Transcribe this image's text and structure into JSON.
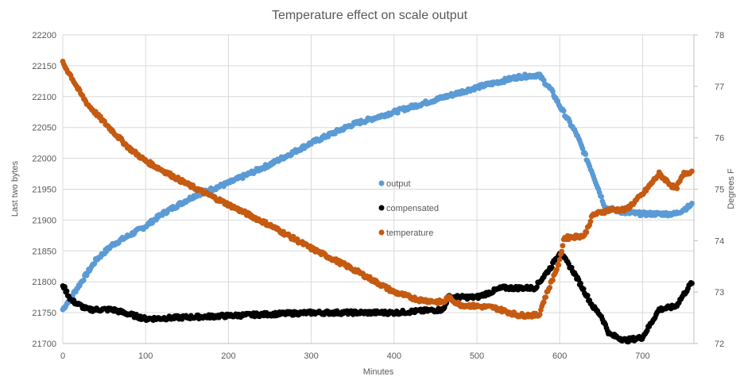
{
  "chart_data": {
    "type": "scatter",
    "title": "Temperature effect on scale output",
    "xlabel": "Minutes",
    "ylabel": "Last two bytes",
    "y2label": "Degrees F",
    "xlim": [
      0,
      762
    ],
    "ylim": [
      21700,
      22200
    ],
    "y2lim": [
      72,
      78
    ],
    "x_ticks": [
      "0",
      "100",
      "200",
      "300",
      "400",
      "500",
      "600",
      "700"
    ],
    "y_ticks": [
      "21700",
      "21750",
      "21800",
      "21850",
      "21900",
      "21950",
      "22000",
      "22050",
      "22100",
      "22150",
      "22200"
    ],
    "y2_ticks": [
      "72",
      "73",
      "74",
      "75",
      "76",
      "77",
      "78"
    ],
    "grid": true,
    "legend_position": "center",
    "series": [
      {
        "name": "output",
        "axis": "left",
        "color": "#5B9BD5",
        "points": [
          [
            0,
            21755
          ],
          [
            10,
            21775
          ],
          [
            20,
            21795
          ],
          [
            40,
            21835
          ],
          [
            60,
            21860
          ],
          [
            80,
            21875
          ],
          [
            100,
            21890
          ],
          [
            120,
            21910
          ],
          [
            140,
            21925
          ],
          [
            160,
            21940
          ],
          [
            200,
            21960
          ],
          [
            250,
            21990
          ],
          [
            300,
            22025
          ],
          [
            350,
            22055
          ],
          [
            400,
            22075
          ],
          [
            450,
            22095
          ],
          [
            500,
            22115
          ],
          [
            550,
            22132
          ],
          [
            575,
            22135
          ],
          [
            590,
            22110
          ],
          [
            600,
            22085
          ],
          [
            620,
            22040
          ],
          [
            640,
            21975
          ],
          [
            655,
            21920
          ],
          [
            680,
            21912
          ],
          [
            700,
            21910
          ],
          [
            740,
            21910
          ],
          [
            760,
            21925
          ]
        ]
      },
      {
        "name": "compensated",
        "axis": "left",
        "color": "#000000",
        "points": [
          [
            0,
            21795
          ],
          [
            10,
            21770
          ],
          [
            30,
            21755
          ],
          [
            60,
            21755
          ],
          [
            100,
            21740
          ],
          [
            200,
            21745
          ],
          [
            300,
            21750
          ],
          [
            400,
            21750
          ],
          [
            460,
            21755
          ],
          [
            465,
            21775
          ],
          [
            500,
            21775
          ],
          [
            530,
            21790
          ],
          [
            570,
            21790
          ],
          [
            590,
            21825
          ],
          [
            600,
            21848
          ],
          [
            615,
            21820
          ],
          [
            640,
            21760
          ],
          [
            650,
            21745
          ],
          [
            660,
            21715
          ],
          [
            680,
            21705
          ],
          [
            700,
            21710
          ],
          [
            720,
            21755
          ],
          [
            740,
            21760
          ],
          [
            760,
            21800
          ]
        ]
      },
      {
        "name": "temperature",
        "axis": "right",
        "color": "#C55A11",
        "points": [
          [
            0,
            77.45
          ],
          [
            10,
            77.2
          ],
          [
            20,
            76.9
          ],
          [
            30,
            76.65
          ],
          [
            50,
            76.3
          ],
          [
            80,
            75.8
          ],
          [
            100,
            75.55
          ],
          [
            150,
            75.1
          ],
          [
            200,
            74.7
          ],
          [
            250,
            74.3
          ],
          [
            300,
            73.85
          ],
          [
            350,
            73.45
          ],
          [
            400,
            73.0
          ],
          [
            430,
            72.85
          ],
          [
            460,
            72.8
          ],
          [
            465,
            72.9
          ],
          [
            480,
            72.75
          ],
          [
            520,
            72.7
          ],
          [
            550,
            72.55
          ],
          [
            575,
            72.55
          ],
          [
            580,
            72.8
          ],
          [
            600,
            73.6
          ],
          [
            605,
            74.05
          ],
          [
            630,
            74.1
          ],
          [
            640,
            74.5
          ],
          [
            660,
            74.6
          ],
          [
            680,
            74.6
          ],
          [
            700,
            74.9
          ],
          [
            720,
            75.3
          ],
          [
            740,
            75.0
          ],
          [
            750,
            75.3
          ],
          [
            760,
            75.35
          ]
        ]
      }
    ]
  }
}
